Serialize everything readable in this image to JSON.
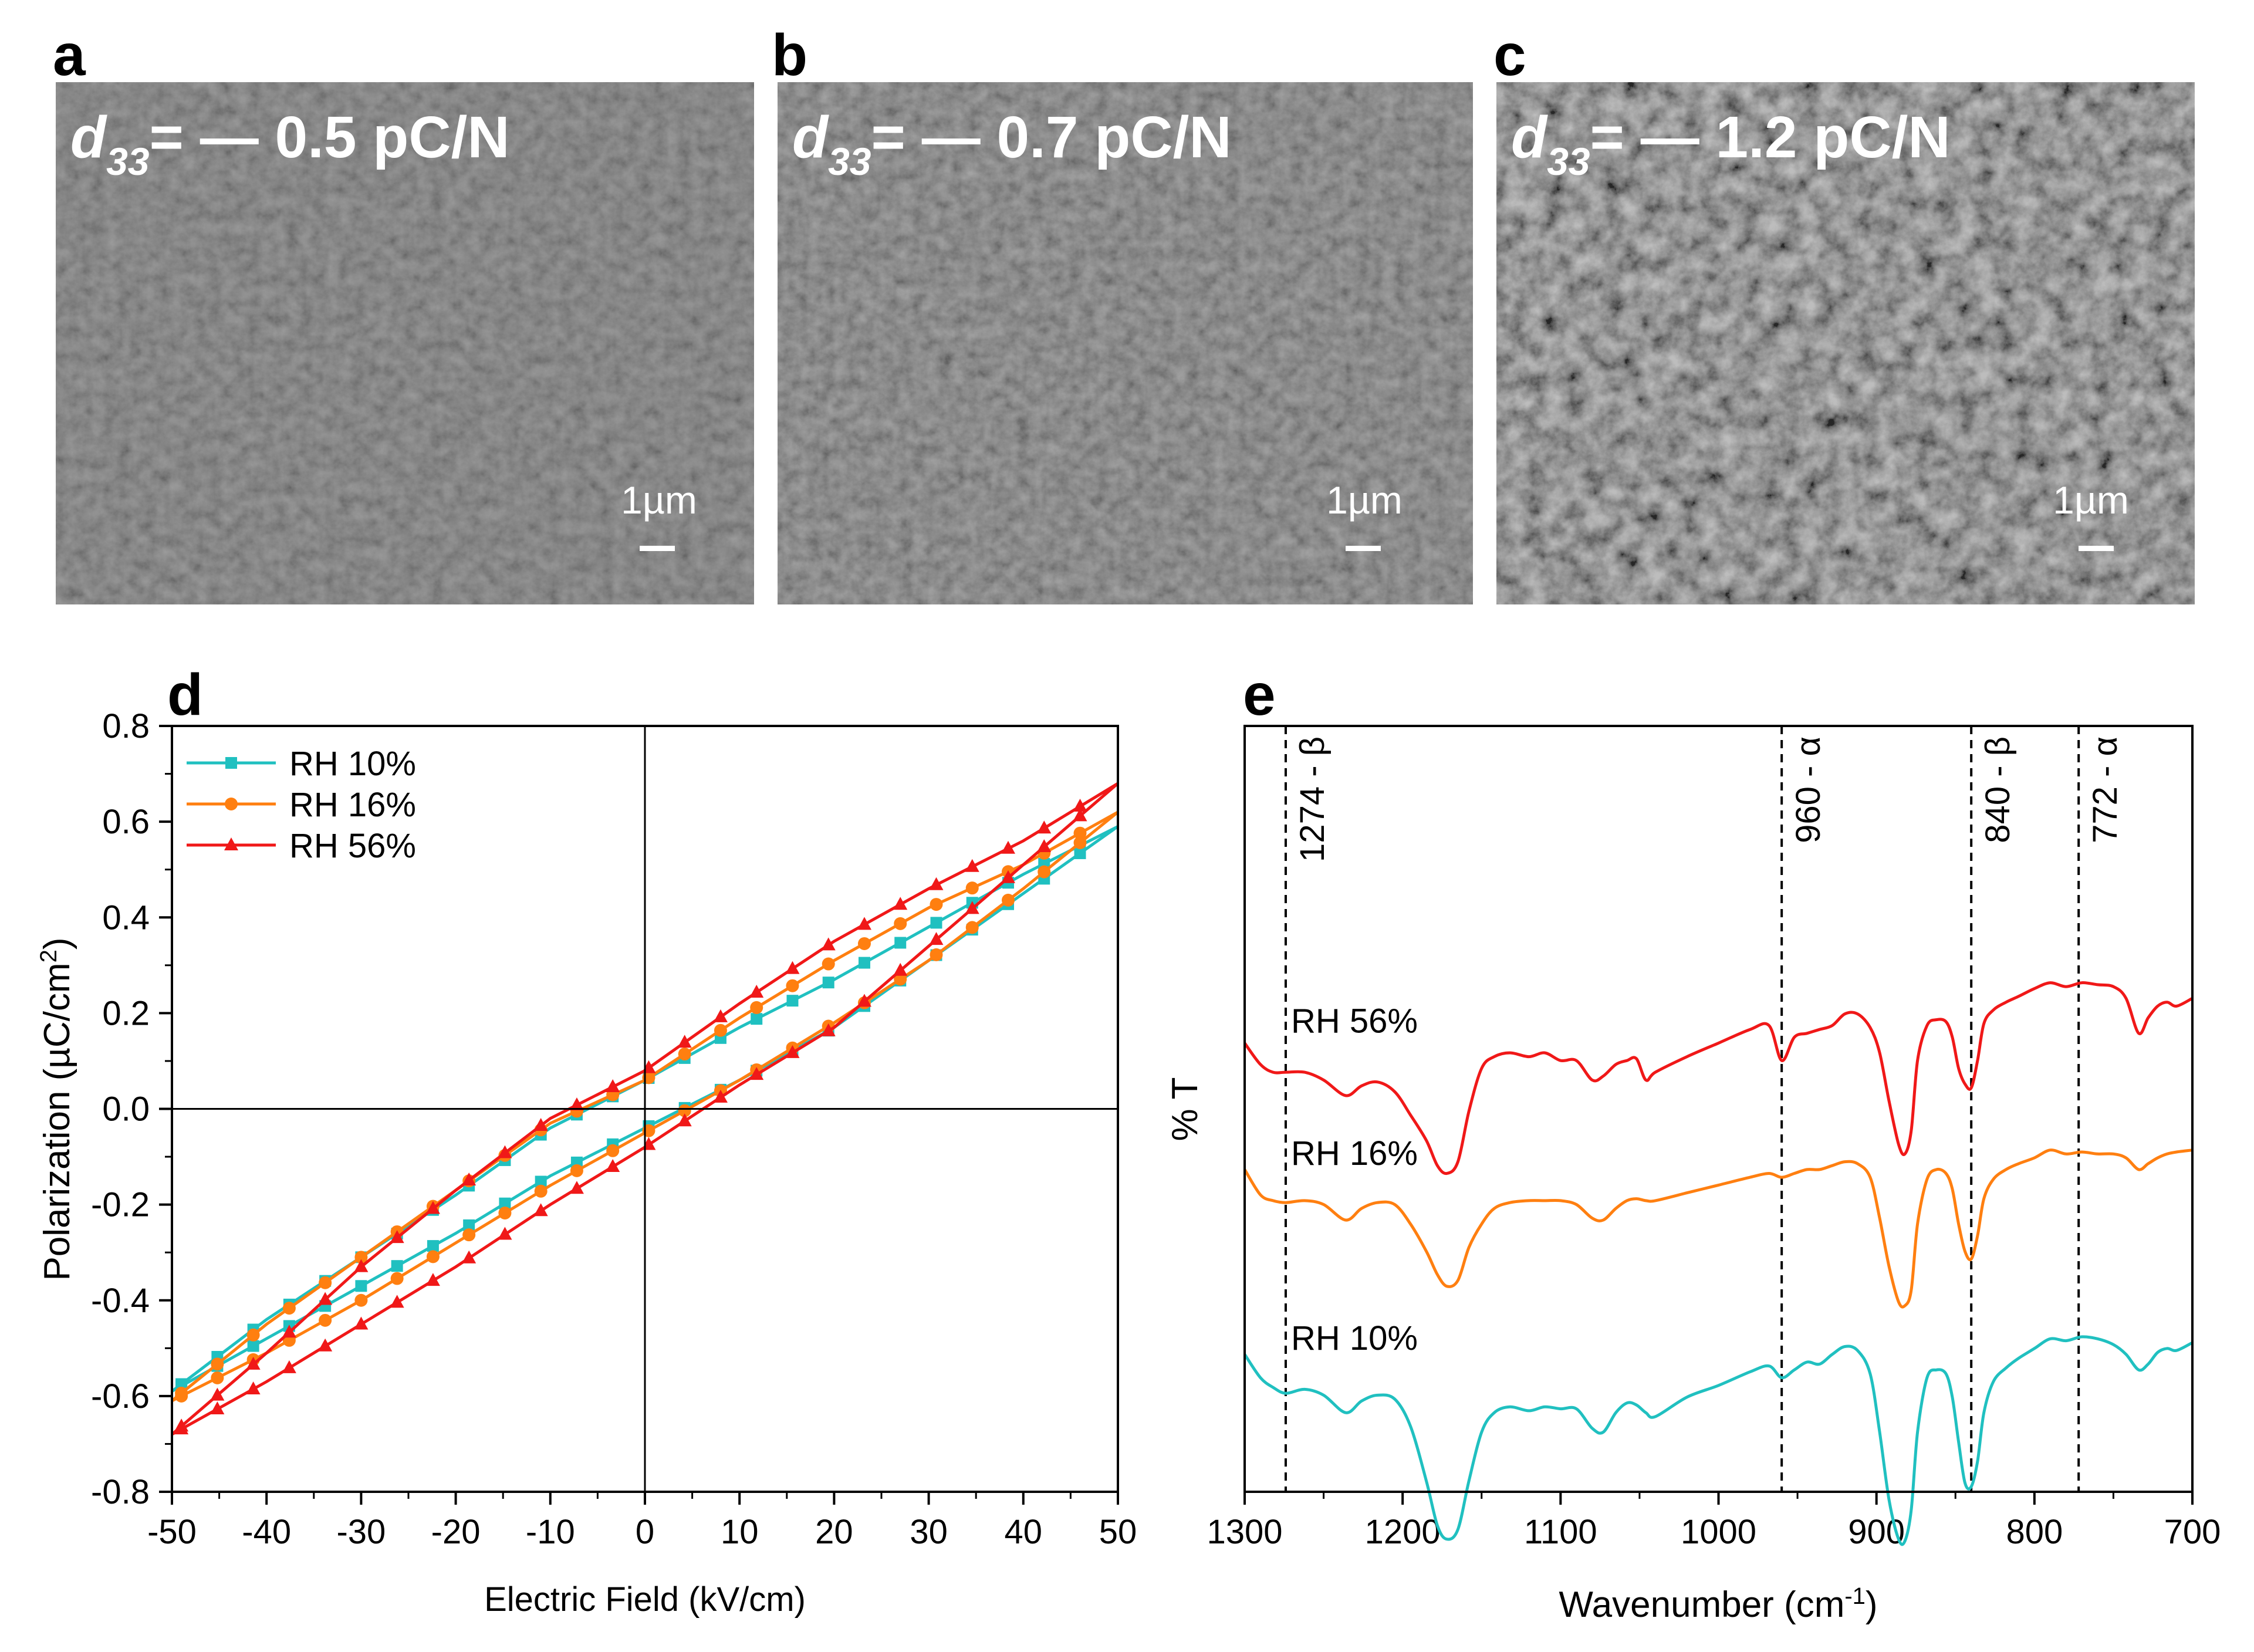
{
  "panels": {
    "a": {
      "label": "a",
      "d33_sym": "d",
      "d33_sub": "33",
      "d33_text": "= — 0.5 pC/N",
      "scale": "1µm"
    },
    "b": {
      "label": "b",
      "d33_sym": "d",
      "d33_sub": "33",
      "d33_text": "= — 0.7 pC/N",
      "scale": "1µm"
    },
    "c": {
      "label": "c",
      "d33_sym": "d",
      "d33_sub": "33",
      "d33_text": "= — 1.2 pC/N",
      "scale": "1µm"
    },
    "d": {
      "label": "d"
    },
    "e": {
      "label": "e"
    }
  },
  "colors": {
    "rh10": "#20C0C0",
    "rh16": "#FF7F10",
    "rh56": "#F01818",
    "sem_bg": "#6e6e6e"
  },
  "chart_data": [
    {
      "type": "line",
      "panel": "d",
      "title": "",
      "xlabel": "Electric Field (kV/cm)",
      "ylabel_main": "Polarization (µC/cm",
      "ylabel_sup": "2",
      "ylabel_close": ")",
      "xlim": [
        -50,
        50
      ],
      "ylim": [
        -0.8,
        0.8
      ],
      "xticks": [
        "-50",
        "-40",
        "-30",
        "-20",
        "-10",
        "0",
        "10",
        "20",
        "30",
        "40",
        "50"
      ],
      "yticks": [
        "-0.8",
        "-0.6",
        "-0.4",
        "-0.2",
        "0.0",
        "0.2",
        "0.4",
        "0.6",
        "0.8"
      ],
      "legend_position": "top-left",
      "series": [
        {
          "name": "RH 10%",
          "marker": "square",
          "color": "#20C0C0",
          "upper": [
            [
              -50,
              -0.59
            ],
            [
              -40,
              -0.44
            ],
            [
              -30,
              -0.31
            ],
            [
              -20,
              -0.18
            ],
            [
              -10,
              -0.04
            ],
            [
              0,
              0.06
            ],
            [
              10,
              0.17
            ],
            [
              20,
              0.27
            ],
            [
              30,
              0.38
            ],
            [
              40,
              0.49
            ],
            [
              50,
              0.59
            ]
          ],
          "lower": [
            [
              50,
              0.59
            ],
            [
              40,
              0.45
            ],
            [
              30,
              0.31
            ],
            [
              20,
              0.17
            ],
            [
              10,
              0.06
            ],
            [
              0,
              -0.04
            ],
            [
              -10,
              -0.14
            ],
            [
              -20,
              -0.26
            ],
            [
              -30,
              -0.37
            ],
            [
              -40,
              -0.48
            ],
            [
              -50,
              -0.59
            ]
          ]
        },
        {
          "name": "RH 16%",
          "marker": "circle",
          "color": "#FF7F10",
          "upper": [
            [
              -50,
              -0.61
            ],
            [
              -40,
              -0.45
            ],
            [
              -30,
              -0.31
            ],
            [
              -20,
              -0.17
            ],
            [
              -10,
              -0.03
            ],
            [
              0,
              0.06
            ],
            [
              10,
              0.19
            ],
            [
              20,
              0.31
            ],
            [
              30,
              0.42
            ],
            [
              40,
              0.51
            ],
            [
              50,
              0.62
            ]
          ],
          "lower": [
            [
              50,
              0.62
            ],
            [
              40,
              0.46
            ],
            [
              30,
              0.31
            ],
            [
              20,
              0.18
            ],
            [
              10,
              0.06
            ],
            [
              0,
              -0.05
            ],
            [
              -10,
              -0.16
            ],
            [
              -20,
              -0.28
            ],
            [
              -30,
              -0.4
            ],
            [
              -40,
              -0.51
            ],
            [
              -50,
              -0.61
            ]
          ]
        },
        {
          "name": "RH 56%",
          "marker": "triangle",
          "color": "#F01818",
          "upper": [
            [
              -50,
              -0.68
            ],
            [
              -40,
              -0.51
            ],
            [
              -30,
              -0.33
            ],
            [
              -20,
              -0.17
            ],
            [
              -10,
              -0.02
            ],
            [
              0,
              0.08
            ],
            [
              10,
              0.22
            ],
            [
              20,
              0.35
            ],
            [
              30,
              0.46
            ],
            [
              40,
              0.56
            ],
            [
              50,
              0.68
            ]
          ],
          "lower": [
            [
              50,
              0.68
            ],
            [
              40,
              0.51
            ],
            [
              30,
              0.34
            ],
            [
              20,
              0.17
            ],
            [
              10,
              0.05
            ],
            [
              0,
              -0.08
            ],
            [
              -10,
              -0.2
            ],
            [
              -20,
              -0.33
            ],
            [
              -30,
              -0.45
            ],
            [
              -40,
              -0.57
            ],
            [
              -50,
              -0.68
            ]
          ]
        }
      ]
    },
    {
      "type": "line",
      "panel": "e",
      "title": "",
      "xlabel_main": "Wavenumber (cm",
      "xlabel_sup": "-1",
      "xlabel_close": ")",
      "ylabel": "% T",
      "xlim": [
        1300,
        700
      ],
      "xticks": [
        "1300",
        "1200",
        "1100",
        "1000",
        "900",
        "800",
        "700"
      ],
      "yticks_shown": false,
      "annotations": [
        {
          "x": 1274,
          "text": "1274 - β"
        },
        {
          "x": 960,
          "text": "960 - α"
        },
        {
          "x": 840,
          "text": "840 - β"
        },
        {
          "x": 772,
          "text": "772 - α"
        }
      ],
      "y_units": "arbitrary (offset traces, transmittance units 0-1 per trace)",
      "series": [
        {
          "name": "RH 56%",
          "color": "#F01818",
          "offset": 2.05,
          "label": "RH 56%"
        },
        {
          "name": "RH 16%",
          "color": "#FF7F10",
          "offset": 1.05,
          "label": "RH 16%"
        },
        {
          "name": "RH 10%",
          "color": "#20C0C0",
          "offset": 0.0,
          "label": "RH 10%"
        }
      ],
      "spectrum_x": [
        1300,
        1290,
        1282,
        1274,
        1262,
        1250,
        1236,
        1226,
        1216,
        1205,
        1195,
        1185,
        1178,
        1172,
        1165,
        1158,
        1150,
        1142,
        1132,
        1120,
        1110,
        1100,
        1090,
        1080,
        1073,
        1065,
        1058,
        1052,
        1046,
        1040,
        1020,
        1000,
        980,
        968,
        960,
        952,
        944,
        936,
        928,
        920,
        912,
        904,
        898,
        892,
        886,
        882,
        878,
        874,
        868,
        862,
        856,
        852,
        848,
        844,
        840,
        836,
        832,
        826,
        818,
        810,
        800,
        790,
        780,
        770,
        760,
        750,
        742,
        734,
        728,
        722,
        716,
        710,
        700
      ],
      "spectrum_y": {
        "RH 10%": [
          1.0,
          0.88,
          0.83,
          0.8,
          0.82,
          0.79,
          0.7,
          0.76,
          0.79,
          0.77,
          0.63,
          0.35,
          0.12,
          0.05,
          0.1,
          0.35,
          0.6,
          0.7,
          0.73,
          0.71,
          0.73,
          0.72,
          0.72,
          0.62,
          0.6,
          0.7,
          0.75,
          0.74,
          0.7,
          0.68,
          0.78,
          0.84,
          0.91,
          0.94,
          0.88,
          0.92,
          0.96,
          0.95,
          1.0,
          1.04,
          1.02,
          0.9,
          0.6,
          0.25,
          0.05,
          0.04,
          0.2,
          0.6,
          0.88,
          0.92,
          0.9,
          0.78,
          0.55,
          0.34,
          0.32,
          0.45,
          0.7,
          0.86,
          0.93,
          0.98,
          1.03,
          1.08,
          1.07,
          1.09,
          1.08,
          1.05,
          1.0,
          0.92,
          0.95,
          1.01,
          1.03,
          1.02,
          1.06
        ],
        "RH 16%": [
          0.9,
          0.77,
          0.74,
          0.73,
          0.74,
          0.72,
          0.64,
          0.7,
          0.73,
          0.72,
          0.62,
          0.48,
          0.36,
          0.3,
          0.33,
          0.5,
          0.62,
          0.7,
          0.73,
          0.74,
          0.74,
          0.74,
          0.72,
          0.65,
          0.64,
          0.7,
          0.74,
          0.75,
          0.74,
          0.74,
          0.78,
          0.82,
          0.86,
          0.88,
          0.86,
          0.88,
          0.9,
          0.9,
          0.92,
          0.94,
          0.93,
          0.86,
          0.65,
          0.4,
          0.22,
          0.2,
          0.28,
          0.62,
          0.85,
          0.9,
          0.88,
          0.8,
          0.62,
          0.48,
          0.44,
          0.56,
          0.75,
          0.85,
          0.9,
          0.93,
          0.96,
          1.0,
          0.98,
          0.99,
          0.98,
          0.98,
          0.96,
          0.9,
          0.93,
          0.96,
          0.98,
          0.99,
          1.0
        ],
        "RH 56%": [
          0.55,
          0.44,
          0.4,
          0.4,
          0.4,
          0.36,
          0.28,
          0.33,
          0.35,
          0.3,
          0.18,
          0.05,
          -0.08,
          -0.12,
          -0.06,
          0.2,
          0.42,
          0.48,
          0.5,
          0.48,
          0.5,
          0.46,
          0.46,
          0.36,
          0.38,
          0.44,
          0.46,
          0.47,
          0.36,
          0.4,
          0.48,
          0.55,
          0.62,
          0.64,
          0.46,
          0.58,
          0.6,
          0.62,
          0.64,
          0.7,
          0.7,
          0.63,
          0.5,
          0.25,
          0.03,
          -0.02,
          0.1,
          0.46,
          0.64,
          0.67,
          0.66,
          0.58,
          0.42,
          0.34,
          0.32,
          0.46,
          0.65,
          0.72,
          0.76,
          0.79,
          0.83,
          0.86,
          0.84,
          0.86,
          0.85,
          0.84,
          0.78,
          0.6,
          0.68,
          0.74,
          0.76,
          0.74,
          0.78
        ]
      }
    }
  ]
}
